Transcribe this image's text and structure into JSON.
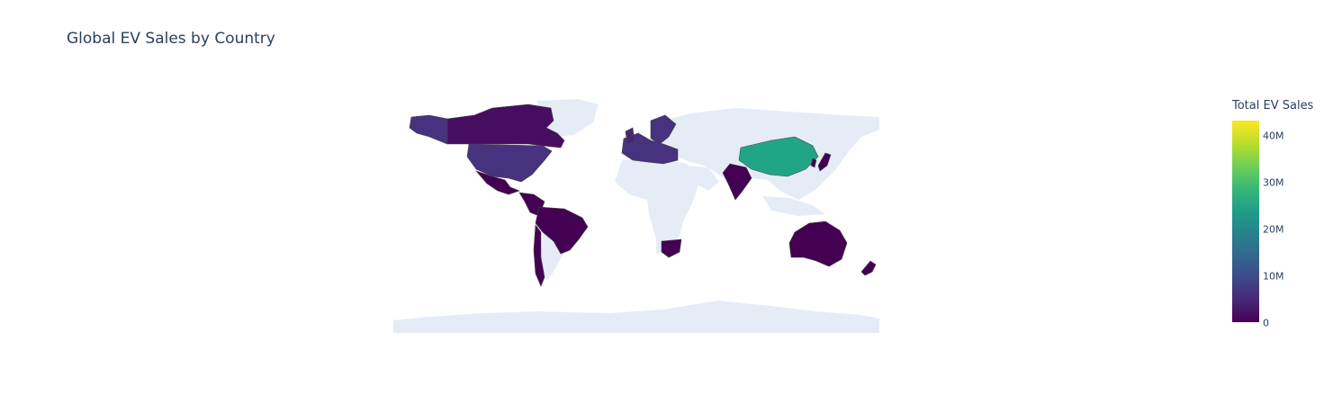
{
  "title": "Global EV Sales by Country",
  "chart_data": {
    "type": "choropleth",
    "title": "Global EV Sales by Country",
    "colorscale": "Viridis",
    "colorbar": {
      "title": "Total EV Sales",
      "range": [
        0,
        43000000
      ],
      "tick_values": [
        0,
        10000000,
        20000000,
        30000000,
        40000000
      ],
      "tick_labels": [
        "0",
        "10M",
        "20M",
        "30M",
        "40M"
      ]
    },
    "countries": [
      {
        "name": "China",
        "value": 24000000
      },
      {
        "name": "United States",
        "value": 5000000
      },
      {
        "name": "Canada",
        "value": 700000
      },
      {
        "name": "Mexico",
        "value": 200000
      },
      {
        "name": "Brazil",
        "value": 150000
      },
      {
        "name": "Colombia",
        "value": 50000
      },
      {
        "name": "Chile",
        "value": 30000
      },
      {
        "name": "Germany",
        "value": 1200000
      },
      {
        "name": "France",
        "value": 800000
      },
      {
        "name": "United Kingdom",
        "value": 900000
      },
      {
        "name": "Norway",
        "value": 600000
      },
      {
        "name": "Sweden",
        "value": 400000
      },
      {
        "name": "India",
        "value": 400000
      },
      {
        "name": "Japan",
        "value": 300000
      },
      {
        "name": "South Korea",
        "value": 400000
      },
      {
        "name": "Australia",
        "value": 200000
      },
      {
        "name": "New Zealand",
        "value": 60000
      },
      {
        "name": "South Africa",
        "value": 20000
      }
    ],
    "land_color": "#e5ecf6",
    "border_color": "#444444"
  }
}
